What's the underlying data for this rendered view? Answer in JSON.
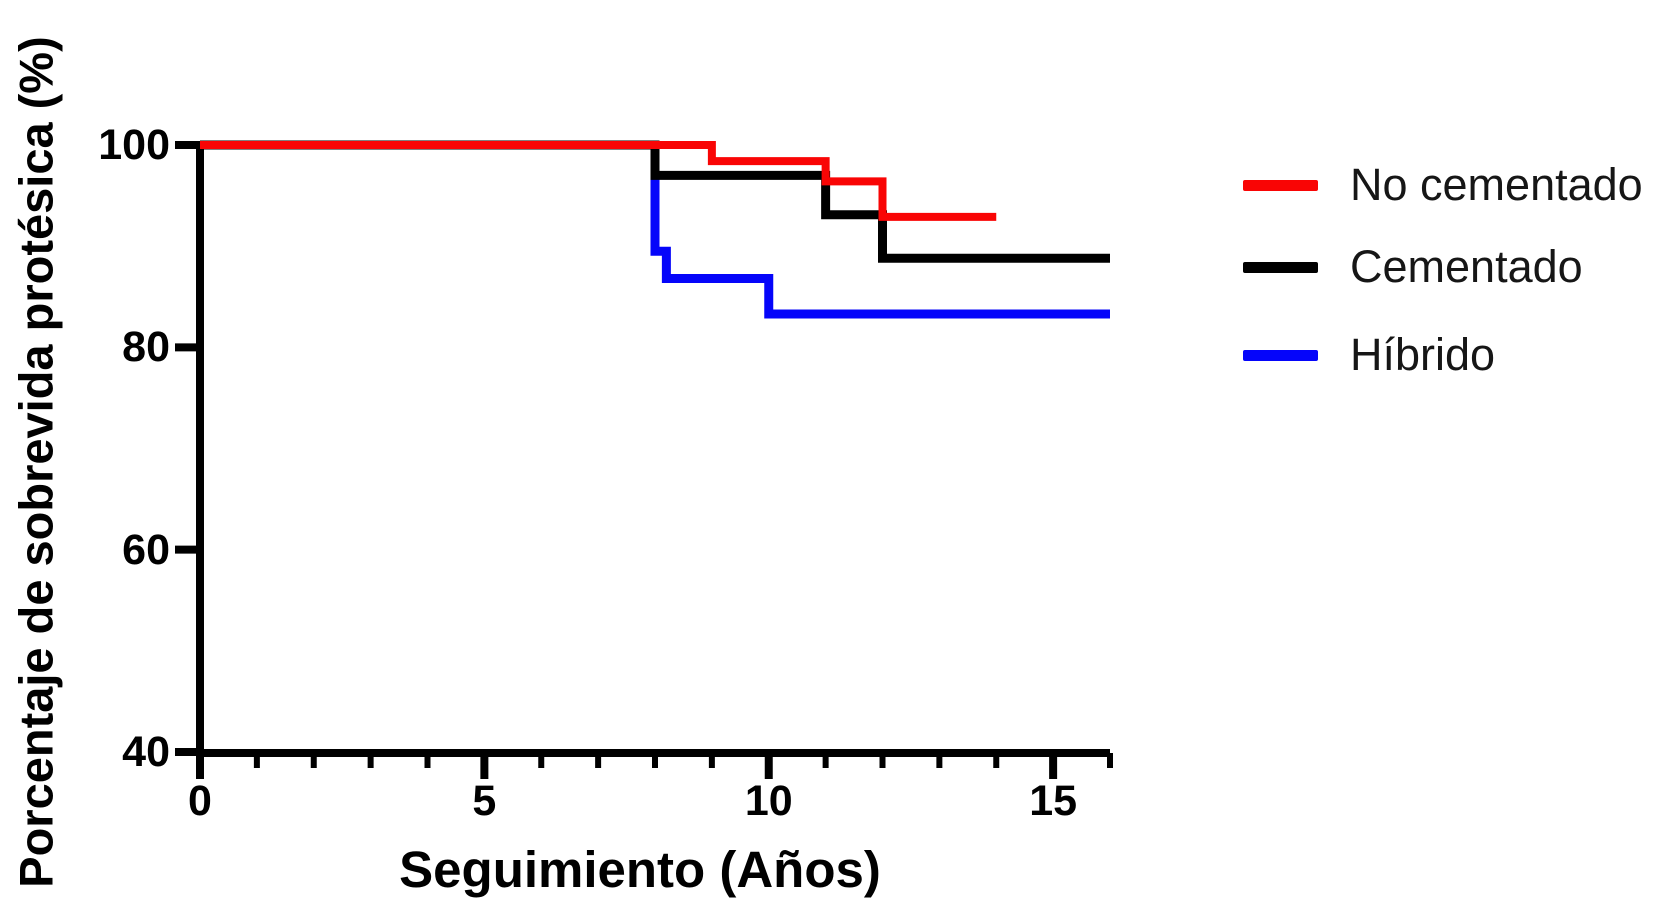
{
  "chart_data": {
    "type": "line",
    "subtype": "kaplan_meier_step_survival",
    "title": "",
    "xlabel": "Seguimiento (Años)",
    "ylabel": "Porcentaje de sobrevida protésica (%)",
    "xlim": [
      0,
      16
    ],
    "ylim": [
      40,
      100
    ],
    "x_major_ticks": [
      0,
      5,
      10,
      15
    ],
    "x_tick_labels": [
      "0",
      "5",
      "10",
      "15"
    ],
    "x_minor_tick_interval": 1,
    "y_ticks": [
      100,
      80,
      60,
      40
    ],
    "y_tick_labels": [
      "100",
      "80",
      "60",
      "40"
    ],
    "grid": false,
    "legend_position": "right-outside",
    "axis_color": "#000000",
    "series": [
      {
        "name": "No cementado",
        "color": "#f90505",
        "stroke_width": 8,
        "points_t_pct": [
          [
            0,
            100
          ],
          [
            9,
            100
          ],
          [
            9,
            98.4
          ],
          [
            11,
            98.4
          ],
          [
            11,
            96.4
          ],
          [
            12,
            96.4
          ],
          [
            12,
            92.9
          ],
          [
            14,
            92.9
          ]
        ]
      },
      {
        "name": "Cementado",
        "color": "#000000",
        "stroke_width": 9,
        "points_t_pct": [
          [
            0,
            100
          ],
          [
            8,
            100
          ],
          [
            8,
            97
          ],
          [
            11,
            97
          ],
          [
            11,
            93.1
          ],
          [
            12,
            93.1
          ],
          [
            12,
            88.8
          ],
          [
            16,
            88.8
          ]
        ]
      },
      {
        "name": "Híbrido",
        "color": "#0505fa",
        "stroke_width": 9,
        "points_t_pct": [
          [
            0,
            100
          ],
          [
            8,
            100
          ],
          [
            8,
            89.5
          ],
          [
            8.2,
            89.5
          ],
          [
            8.2,
            86.8
          ],
          [
            10,
            86.8
          ],
          [
            10,
            83.3
          ],
          [
            16,
            83.3
          ]
        ]
      }
    ]
  },
  "legend": {
    "items": [
      {
        "label": "No cementado",
        "color": "#f90505"
      },
      {
        "label": "Cementado",
        "color": "#000000"
      },
      {
        "label": "Híbrido",
        "color": "#0505fa"
      }
    ]
  }
}
